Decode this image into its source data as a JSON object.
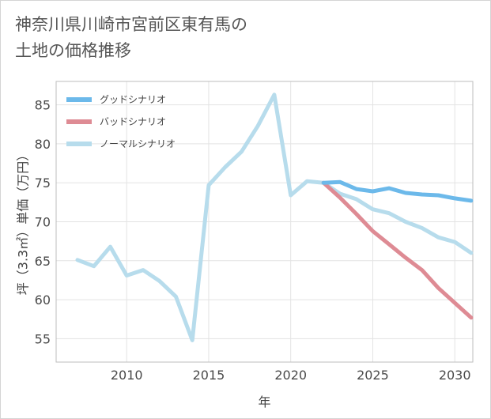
{
  "chart_data": {
    "type": "line",
    "title": "神奈川県川崎市宮前区東有馬の\n土地の価格推移",
    "xlabel": "年",
    "ylabel": "坪（3.3㎡）単価（万円）",
    "xlim": [
      2005.7,
      2031.1
    ],
    "ylim": [
      52,
      88
    ],
    "x_ticks": [
      2010,
      2015,
      2020,
      2025,
      2030
    ],
    "y_ticks": [
      55,
      60,
      65,
      70,
      75,
      80,
      85
    ],
    "x_tick_labels": [
      "2010",
      "2015",
      "2020",
      "2025",
      "2030"
    ],
    "y_tick_labels": [
      "55",
      "60",
      "65",
      "70",
      "75",
      "80",
      "85"
    ],
    "grid": true,
    "legend_position": "top-left",
    "series": [
      {
        "name": "グッドシナリオ",
        "color": "#6cb9ea",
        "x": [
          2022,
          2023,
          2024,
          2025,
          2026,
          2027,
          2028,
          2029,
          2030,
          2031
        ],
        "y": [
          75.0,
          75.1,
          74.2,
          73.9,
          74.3,
          73.7,
          73.5,
          73.4,
          73.0,
          72.7
        ]
      },
      {
        "name": "バッドシナリオ",
        "color": "#de8b94",
        "x": [
          2022,
          2023,
          2024,
          2025,
          2026,
          2027,
          2028,
          2029,
          2030,
          2031
        ],
        "y": [
          75.0,
          73.1,
          71.0,
          68.8,
          67.1,
          65.4,
          63.8,
          61.5,
          59.6,
          57.7
        ]
      },
      {
        "name": "ノーマルシナリオ",
        "color": "#b7dcec",
        "x": [
          2007,
          2008,
          2009,
          2010,
          2011,
          2012,
          2013,
          2014,
          2015,
          2016,
          2017,
          2018,
          2019,
          2020,
          2021,
          2022,
          2023,
          2024,
          2025,
          2026,
          2027,
          2028,
          2029,
          2030,
          2031
        ],
        "y": [
          65.1,
          64.3,
          66.8,
          63.1,
          63.8,
          62.4,
          60.4,
          54.8,
          74.7,
          77.0,
          79.0,
          82.3,
          86.3,
          73.4,
          75.2,
          75.0,
          73.6,
          72.9,
          71.6,
          71.1,
          70.0,
          69.2,
          68.0,
          67.4,
          66.0
        ]
      }
    ]
  }
}
